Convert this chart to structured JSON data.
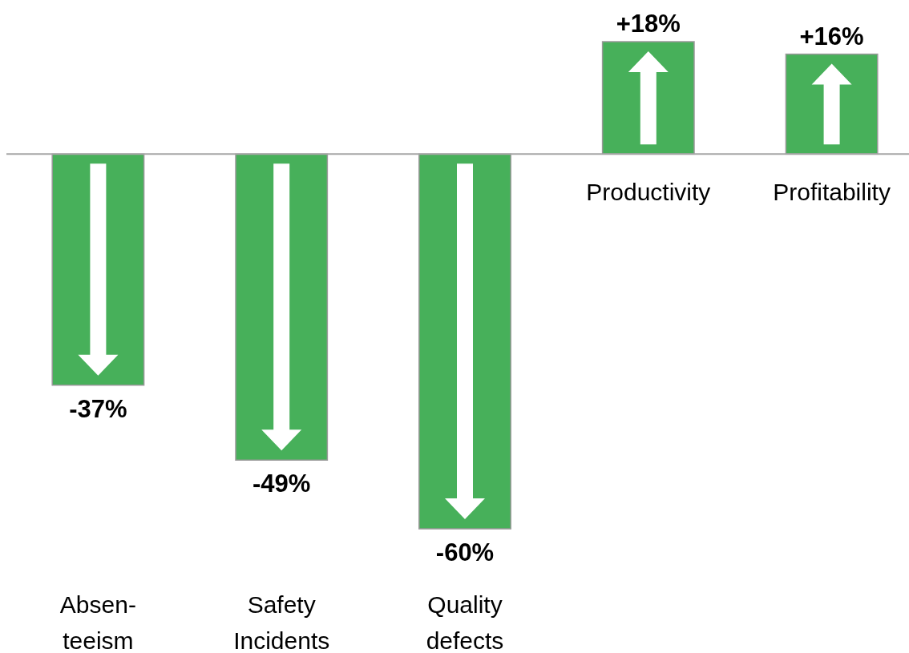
{
  "chart_data": {
    "type": "bar",
    "categories": [
      "Absen-\nteeism",
      "Safety\nIncidents",
      "Quality\ndefects",
      "Productivity",
      "Profitability"
    ],
    "values": [
      -37,
      -49,
      -60,
      18,
      16
    ],
    "color": "#47b05a",
    "value_labels": [
      "-37%",
      "-49%",
      "-60%",
      "+18%",
      "+16%"
    ]
  }
}
